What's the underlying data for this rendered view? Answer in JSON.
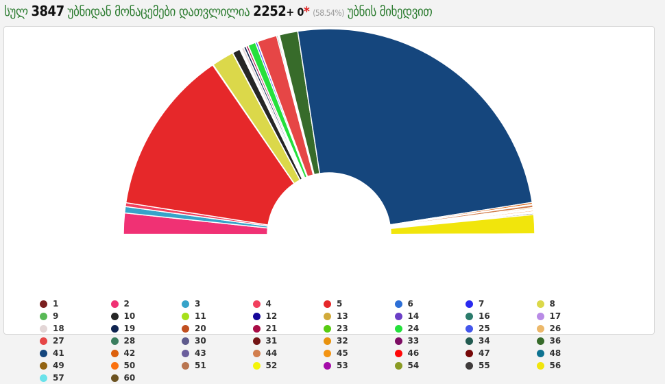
{
  "header": {
    "prefix": "სულ",
    "total_precincts": "3847",
    "mid": "უბნიდან მონაცემები დათვლილია",
    "counted": "2252",
    "plus": "+ 0",
    "star": "*",
    "percent": "(58.54%)",
    "suffix": "უბნის მიხედვით"
  },
  "chart_data": {
    "type": "pie",
    "variant": "semicircle-donut",
    "legend_position": "bottom",
    "unit": "approximate share of semicircle (%)",
    "slices": [
      {
        "name": "1",
        "color": "#7a1f1f",
        "value": 0.05
      },
      {
        "name": "2",
        "color": "#f03174",
        "value": 3.3
      },
      {
        "name": "3",
        "color": "#36a3c9",
        "value": 1.0
      },
      {
        "name": "4",
        "color": "#f2405e",
        "value": 0.6
      },
      {
        "name": "5",
        "color": "#e6282a",
        "value": 25.9
      },
      {
        "name": "6",
        "color": "#2d6fd6",
        "value": 0.05
      },
      {
        "name": "7",
        "color": "#2a2af0",
        "value": 0.05
      },
      {
        "name": "8",
        "color": "#dbd84a",
        "value": 3.5
      },
      {
        "name": "9",
        "color": "#58b956",
        "value": 0.05
      },
      {
        "name": "10",
        "color": "#262626",
        "value": 1.2
      },
      {
        "name": "11",
        "color": "#a6e01a",
        "value": 0.05
      },
      {
        "name": "12",
        "color": "#16079a",
        "value": 0.05
      },
      {
        "name": "13",
        "color": "#d1aa3a",
        "value": 0.05
      },
      {
        "name": "14",
        "color": "#6b3fc6",
        "value": 0.05
      },
      {
        "name": "16",
        "color": "#2b7b6b",
        "value": 0.05
      },
      {
        "name": "17",
        "color": "#b98be6",
        "value": 0.05
      },
      {
        "name": "18",
        "color": "#e3d6d6",
        "value": 0.4
      },
      {
        "name": "19",
        "color": "#0f2450",
        "value": 0.35
      },
      {
        "name": "20",
        "color": "#c15020",
        "value": 0.05
      },
      {
        "name": "21",
        "color": "#a80c45",
        "value": 0.3
      },
      {
        "name": "23",
        "color": "#58cc12",
        "value": 0.05
      },
      {
        "name": "24",
        "color": "#25e03c",
        "value": 1.2
      },
      {
        "name": "25",
        "color": "#4356eb",
        "value": 0.3
      },
      {
        "name": "26",
        "color": "#ecb86a",
        "value": 0.05
      },
      {
        "name": "27",
        "color": "#e64646",
        "value": 3.1
      },
      {
        "name": "28",
        "color": "#3a7d5e",
        "value": 0.2
      },
      {
        "name": "30",
        "color": "#5e5a8c",
        "value": 0.05
      },
      {
        "name": "31",
        "color": "#731515",
        "value": 0.05
      },
      {
        "name": "32",
        "color": "#e8920e",
        "value": 0.05
      },
      {
        "name": "33",
        "color": "#7d0d63",
        "value": 0.05
      },
      {
        "name": "34",
        "color": "#225a50",
        "value": 0.05
      },
      {
        "name": "36",
        "color": "#376b2a",
        "value": 2.9
      },
      {
        "name": "41",
        "color": "#15467d",
        "value": 49.9
      },
      {
        "name": "42",
        "color": "#dc600c",
        "value": 0.3
      },
      {
        "name": "43",
        "color": "#6b5e9c",
        "value": 0.1
      },
      {
        "name": "44",
        "color": "#d27e4e",
        "value": 0.4
      },
      {
        "name": "45",
        "color": "#f39413",
        "value": 0.2
      },
      {
        "name": "46",
        "color": "#ff0808",
        "value": 0.1
      },
      {
        "name": "47",
        "color": "#760808",
        "value": 0.05
      },
      {
        "name": "48",
        "color": "#0e7391",
        "value": 0.05
      },
      {
        "name": "49",
        "color": "#926311",
        "value": 0.05
      },
      {
        "name": "50",
        "color": "#fb700e",
        "value": 0.2
      },
      {
        "name": "51",
        "color": "#b97550",
        "value": 0.1
      },
      {
        "name": "52",
        "color": "#f4f40a",
        "value": 0.05
      },
      {
        "name": "53",
        "color": "#a40ca9",
        "value": 0.05
      },
      {
        "name": "54",
        "color": "#8a9b24",
        "value": 0.05
      },
      {
        "name": "55",
        "color": "#3f3b3b",
        "value": 0.2
      },
      {
        "name": "56",
        "color": "#f1e50c",
        "value": 3.0
      },
      {
        "name": "57",
        "color": "#6ae2ea",
        "value": 0.05
      },
      {
        "name": "60",
        "color": "#6b5220",
        "value": 0.05
      }
    ]
  }
}
